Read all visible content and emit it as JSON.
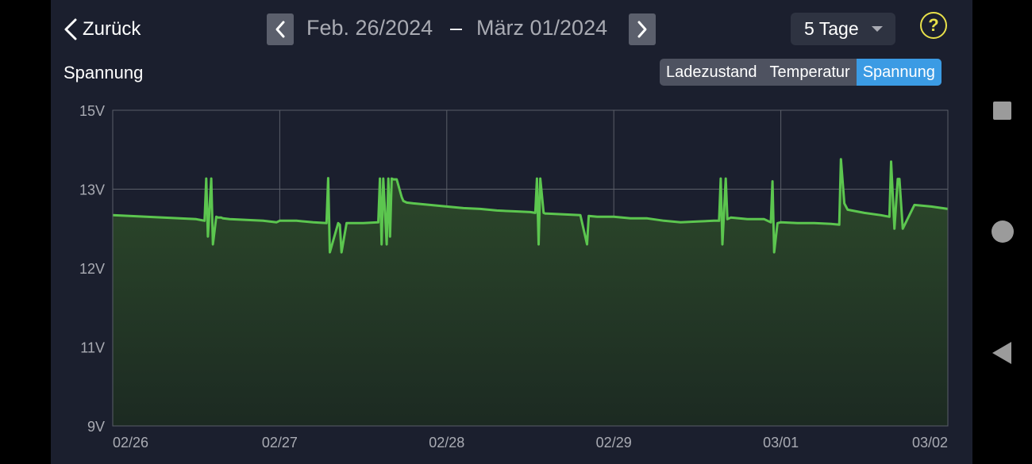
{
  "header": {
    "back_label": "Zurück",
    "date_start": "Feb. 26/2024",
    "date_separator": "–",
    "date_end": "März 01/2024",
    "range_selected": "5 Tage",
    "help_symbol": "?"
  },
  "panel": {
    "title": "Spannung",
    "tabs": [
      {
        "label": "Ladezustand",
        "active": false
      },
      {
        "label": "Temperatur",
        "active": false
      },
      {
        "label": "Spannung",
        "active": true
      }
    ]
  },
  "colors": {
    "background": "#1b1f2e",
    "accent": "#3b9be4",
    "line": "#5cc64f",
    "fill": "#2d4a2b",
    "help": "#e8e04a"
  },
  "icons": {
    "back": "chevron-left-icon",
    "prev": "chevron-left-icon",
    "next": "chevron-right-icon",
    "dropdown": "caret-down-icon",
    "help": "question-circle-icon"
  },
  "chart_data": {
    "type": "area",
    "title": "Spannung",
    "xlabel": "",
    "ylabel": "",
    "x_ticks": [
      "02/26",
      "02/27",
      "02/28",
      "02/29",
      "03/01",
      "03/02"
    ],
    "y_ticks": [
      "15V",
      "13V",
      "12V",
      "11V",
      "9V"
    ],
    "y_tick_values": [
      15,
      13,
      12,
      11,
      9
    ],
    "y_range": [
      9,
      15
    ],
    "x_range_days": [
      0,
      5
    ],
    "grid": true,
    "series": [
      {
        "name": "",
        "x": [
          0,
          0.1,
          0.2,
          0.3,
          0.4,
          0.5,
          0.55,
          0.56,
          0.57,
          0.59,
          0.6,
          0.62,
          0.63,
          0.64,
          0.65,
          0.66,
          0.7,
          0.8,
          0.9,
          0.98,
          1.0,
          1.1,
          1.2,
          1.28,
          1.29,
          1.3,
          1.35,
          1.36,
          1.37,
          1.4,
          1.5,
          1.59,
          1.6,
          1.61,
          1.62,
          1.64,
          1.65,
          1.66,
          1.67,
          1.68,
          1.7,
          1.73,
          1.74,
          1.76,
          1.8,
          1.9,
          2.0,
          2.1,
          2.2,
          2.3,
          2.4,
          2.5,
          2.53,
          2.54,
          2.55,
          2.56,
          2.58,
          2.59,
          2.6,
          2.7,
          2.8,
          2.84,
          2.85,
          2.9,
          3.0,
          3.1,
          3.2,
          3.3,
          3.4,
          3.5,
          3.6,
          3.63,
          3.64,
          3.65,
          3.67,
          3.68,
          3.7,
          3.8,
          3.9,
          3.94,
          3.95,
          3.96,
          3.98,
          4.0,
          4.1,
          4.2,
          4.3,
          4.35,
          4.36,
          4.38,
          4.4,
          4.5,
          4.6,
          4.65,
          4.66,
          4.68,
          4.7,
          4.71,
          4.73,
          4.8,
          4.9,
          5.0
        ],
        "values": [
          12.67,
          12.66,
          12.65,
          12.64,
          12.63,
          12.62,
          12.6,
          13.27,
          12.4,
          13.27,
          12.3,
          12.65,
          12.64,
          12.64,
          12.64,
          12.63,
          12.62,
          12.61,
          12.6,
          12.58,
          12.6,
          12.6,
          12.58,
          12.57,
          13.28,
          12.2,
          12.57,
          12.55,
          12.2,
          12.57,
          12.57,
          12.58,
          13.27,
          12.3,
          13.27,
          12.3,
          13.27,
          12.4,
          13.27,
          13.25,
          13.25,
          12.9,
          12.85,
          12.83,
          12.82,
          12.8,
          12.78,
          12.76,
          12.75,
          12.73,
          12.72,
          12.71,
          12.7,
          13.27,
          12.3,
          13.27,
          12.7,
          12.69,
          12.69,
          12.68,
          12.67,
          12.3,
          12.66,
          12.65,
          12.65,
          12.63,
          12.63,
          12.6,
          12.58,
          12.59,
          12.6,
          12.6,
          13.27,
          12.3,
          13.27,
          12.62,
          12.64,
          12.62,
          12.62,
          12.58,
          13.2,
          12.2,
          12.57,
          12.58,
          12.57,
          12.57,
          12.56,
          12.55,
          13.76,
          12.82,
          12.74,
          12.7,
          12.67,
          12.65,
          13.7,
          12.5,
          13.26,
          13.26,
          12.5,
          12.8,
          12.78,
          12.75
        ]
      }
    ]
  }
}
